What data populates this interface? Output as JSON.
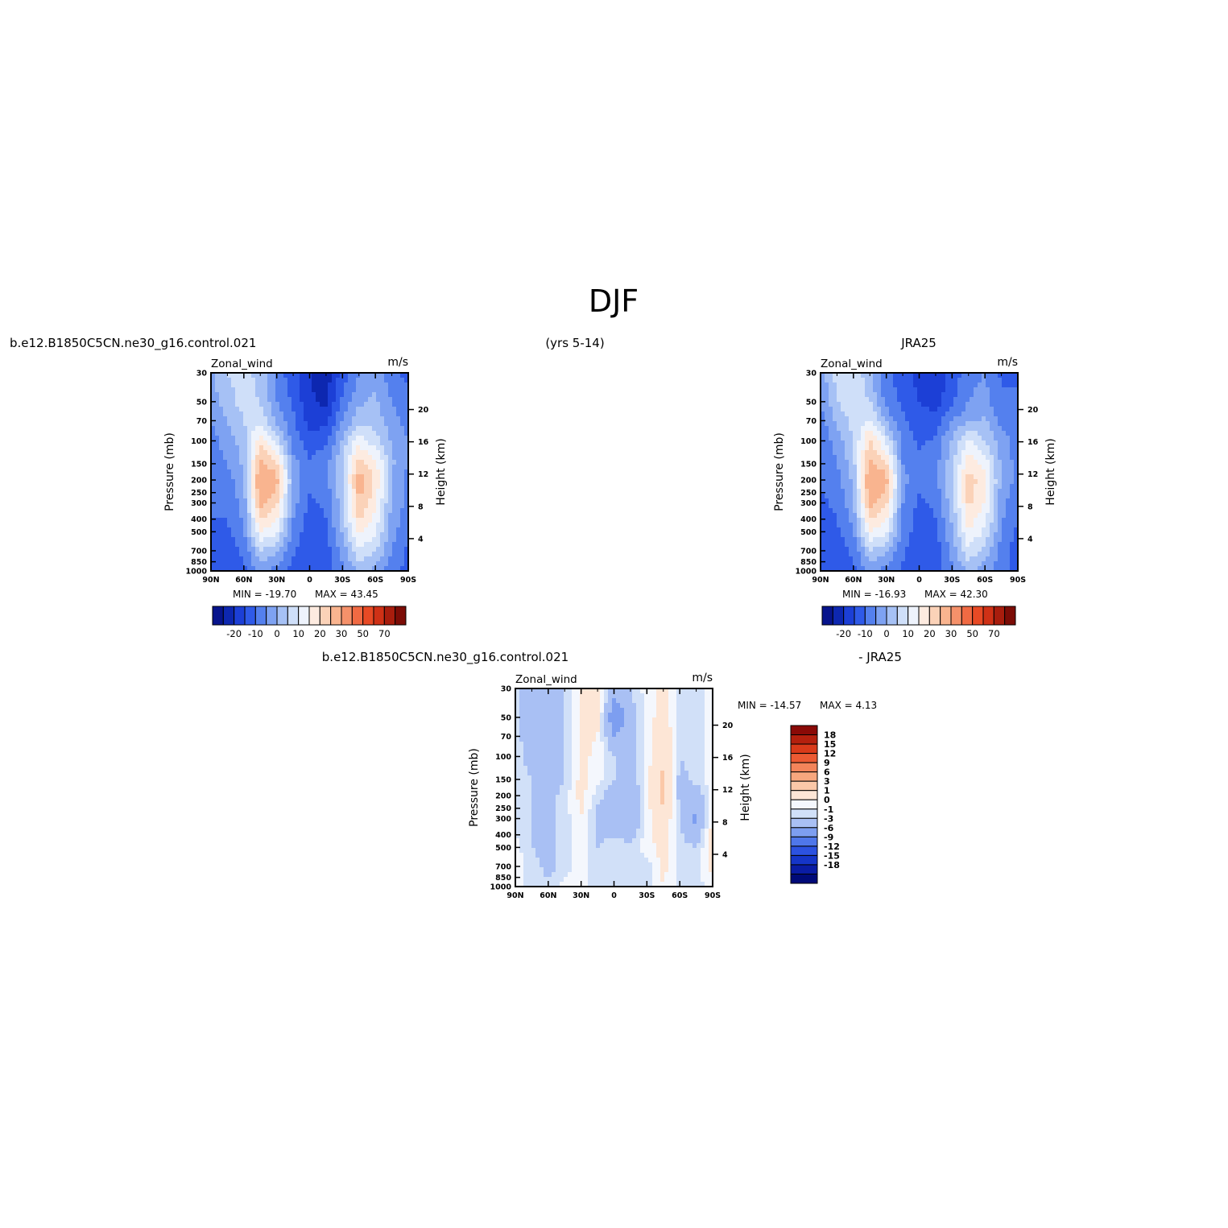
{
  "figure": {
    "season_title": "DJF",
    "case_name": "b.e12.B1850C5CN.ne30_g16.control.021",
    "years": "(yrs 5-14)",
    "obs_name": "JRA25",
    "diff_suffix": "- JRA25"
  },
  "colors": {
    "mean_palette": [
      "#07148c",
      "#0d27b0",
      "#1c3fd6",
      "#2f5ae8",
      "#5480ee",
      "#7ea2f2",
      "#a6c1f5",
      "#cfdff9",
      "#eef3fc",
      "#fdebe0",
      "#fbd2b8",
      "#f9b48f",
      "#f5916a",
      "#f06a43",
      "#e84a25",
      "#cf3116",
      "#a81d0d",
      "#7c0c06"
    ],
    "diff_palette": [
      "#000a78",
      "#0a1ca4",
      "#1535c8",
      "#2c52e0",
      "#4f77ea",
      "#7d9ef0",
      "#a9c0f4",
      "#d1e0f8",
      "#f4f7fd",
      "#fde6d6",
      "#fbc8a8",
      "#f7a77e",
      "#f3845a",
      "#ec5a33",
      "#d93a1a",
      "#b4200e",
      "#8a0a07"
    ]
  },
  "chart_data": [
    {
      "type": "heatmap",
      "panel": "model",
      "subtitle_left": "b.e12.B1850C5CN.ne30_g16.control.021",
      "subtitle_center": "(yrs 5-14)",
      "variable": "Zonal_wind",
      "units": "m/s",
      "ylabel": "Pressure (mb)",
      "right_label": "Height (km)",
      "x_ticks": [
        "90N",
        "60N",
        "30N",
        "0",
        "30S",
        "60S",
        "90S"
      ],
      "y_ticks": [
        30,
        50,
        70,
        100,
        150,
        200,
        250,
        300,
        400,
        500,
        700,
        850,
        1000
      ],
      "height_ticks": [
        20,
        16,
        12,
        8,
        4
      ],
      "min_text": "MIN = -19.70",
      "max_text": "MAX = 43.45",
      "min": -19.7,
      "max": 43.45,
      "levels": [
        -25,
        -20,
        -15,
        -10,
        -5,
        0,
        5,
        10,
        15,
        20,
        25,
        30,
        40,
        50,
        60,
        70,
        80
      ],
      "level_labels": [
        "-20",
        "-10",
        "0",
        "10",
        "20",
        "30",
        "50",
        "70"
      ],
      "x": [
        -90,
        -75,
        -60,
        -45,
        -30,
        -15,
        0,
        15,
        30,
        45,
        60,
        75,
        90
      ],
      "p": [
        30,
        50,
        70,
        100,
        150,
        200,
        300,
        500,
        700,
        1000
      ],
      "u": [
        [
          4,
          10,
          12,
          8,
          -2,
          -8,
          -15,
          -18,
          -8,
          0,
          4,
          -4,
          -6
        ],
        [
          2,
          8,
          12,
          10,
          0,
          -6,
          -14,
          -16,
          -4,
          4,
          6,
          0,
          -4
        ],
        [
          0,
          5,
          10,
          14,
          4,
          -4,
          -12,
          -12,
          0,
          8,
          8,
          2,
          -2
        ],
        [
          -2,
          2,
          8,
          24,
          12,
          -2,
          -8,
          -6,
          6,
          18,
          12,
          4,
          0
        ],
        [
          -2,
          0,
          6,
          32,
          26,
          2,
          -4,
          -2,
          10,
          28,
          22,
          6,
          0
        ],
        [
          -2,
          -2,
          4,
          38,
          32,
          4,
          -4,
          -2,
          10,
          34,
          24,
          4,
          -2
        ],
        [
          -4,
          -4,
          2,
          32,
          26,
          2,
          -6,
          -4,
          8,
          30,
          22,
          4,
          -2
        ],
        [
          -6,
          -6,
          0,
          20,
          16,
          -2,
          -8,
          -6,
          6,
          22,
          16,
          2,
          -4
        ],
        [
          -8,
          -8,
          -4,
          10,
          6,
          -4,
          -10,
          -8,
          2,
          14,
          10,
          0,
          -6
        ],
        [
          -6,
          -6,
          -6,
          2,
          -2,
          -8,
          -8,
          -6,
          -2,
          6,
          4,
          -4,
          -6
        ]
      ]
    },
    {
      "type": "heatmap",
      "panel": "observations",
      "subtitle_right": "JRA25",
      "variable": "Zonal_wind",
      "units": "m/s",
      "ylabel": "Pressure (mb)",
      "right_label": "Height (km)",
      "x_ticks": [
        "90N",
        "60N",
        "30N",
        "0",
        "30S",
        "60S",
        "90S"
      ],
      "y_ticks": [
        30,
        50,
        70,
        100,
        150,
        200,
        250,
        300,
        400,
        500,
        700,
        850,
        1000
      ],
      "height_ticks": [
        20,
        16,
        12,
        8,
        4
      ],
      "min_text": "MIN = -16.93",
      "max_text": "MAX = 42.30",
      "min": -16.93,
      "max": 42.3,
      "levels": [
        -25,
        -20,
        -15,
        -10,
        -5,
        0,
        5,
        10,
        15,
        20,
        25,
        30,
        40,
        50,
        60,
        70,
        80
      ],
      "level_labels": [
        "-20",
        "-10",
        "0",
        "10",
        "20",
        "30",
        "50",
        "70"
      ],
      "x": [
        -90,
        -75,
        -60,
        -45,
        -30,
        -15,
        0,
        15,
        30,
        45,
        60,
        75,
        90
      ],
      "p": [
        30,
        50,
        70,
        100,
        150,
        200,
        300,
        500,
        700,
        1000
      ],
      "u": [
        [
          2,
          12,
          14,
          6,
          -4,
          -8,
          -12,
          -14,
          -8,
          -2,
          0,
          -6,
          -6
        ],
        [
          0,
          10,
          14,
          10,
          -2,
          -6,
          -10,
          -12,
          -6,
          0,
          2,
          -4,
          -4
        ],
        [
          -2,
          6,
          12,
          16,
          4,
          -4,
          -8,
          -8,
          0,
          4,
          6,
          -2,
          -4
        ],
        [
          -4,
          2,
          10,
          26,
          14,
          -2,
          -6,
          -4,
          6,
          16,
          10,
          2,
          -2
        ],
        [
          -4,
          0,
          8,
          32,
          26,
          0,
          -4,
          -2,
          8,
          24,
          18,
          4,
          -2
        ],
        [
          -4,
          -2,
          6,
          38,
          32,
          2,
          -4,
          -2,
          10,
          28,
          22,
          4,
          -2
        ],
        [
          -6,
          -4,
          4,
          32,
          26,
          0,
          -6,
          -4,
          8,
          26,
          20,
          2,
          -4
        ],
        [
          -8,
          -6,
          0,
          20,
          16,
          -2,
          -8,
          -6,
          4,
          20,
          14,
          0,
          -6
        ],
        [
          -8,
          -8,
          -4,
          10,
          6,
          -4,
          -10,
          -8,
          2,
          14,
          8,
          -2,
          -8
        ],
        [
          -6,
          -6,
          -6,
          2,
          -2,
          -6,
          -8,
          -6,
          -2,
          6,
          2,
          -4,
          -6
        ]
      ]
    },
    {
      "type": "heatmap",
      "panel": "difference",
      "subtitle_left": "b.e12.B1850C5CN.ne30_g16.control.021",
      "subtitle_right": "- JRA25",
      "variable": "Zonal_wind",
      "units": "m/s",
      "ylabel": "Pressure (mb)",
      "right_label": "Height (km)",
      "x_ticks": [
        "90N",
        "60N",
        "30N",
        "0",
        "30S",
        "60S",
        "90S"
      ],
      "y_ticks": [
        30,
        50,
        70,
        100,
        150,
        200,
        250,
        300,
        400,
        500,
        700,
        850,
        1000
      ],
      "height_ticks": [
        20,
        16,
        12,
        8,
        4
      ],
      "min_text": "MIN = -14.57",
      "max_text": "MAX = 4.13",
      "min": -14.57,
      "max": 4.13,
      "levels": [
        -21,
        -18,
        -15,
        -12,
        -9,
        -6,
        -3,
        -1,
        0,
        1,
        3,
        6,
        9,
        12,
        15,
        18,
        21
      ],
      "level_labels": [
        "18",
        "15",
        "12",
        "9",
        "6",
        "3",
        "1",
        "0",
        "-1",
        "-3",
        "-6",
        "-9",
        "-12",
        "-15",
        "-18"
      ],
      "x": [
        -90,
        -75,
        -60,
        -45,
        -30,
        -15,
        0,
        15,
        30,
        45,
        60,
        75,
        90
      ],
      "p": [
        30,
        50,
        70,
        100,
        150,
        200,
        300,
        500,
        700,
        1000
      ],
      "u": [
        [
          -0.5,
          -2,
          -3,
          -1,
          1.5,
          2,
          -2,
          -1,
          0.5,
          1.5,
          -0.5,
          -0.5,
          0.5
        ],
        [
          -0.5,
          -2,
          -3,
          -1,
          1.5,
          1.5,
          -5,
          -2,
          0.5,
          1.5,
          -0.5,
          -0.5,
          0.5
        ],
        [
          -0.5,
          -2,
          -3,
          -1,
          1.5,
          1,
          -3,
          -2,
          0.5,
          2.5,
          -0.5,
          -0.5,
          0.5
        ],
        [
          -0.5,
          -1.5,
          -3,
          -1,
          1.5,
          0.5,
          -1,
          -1.5,
          0.5,
          2.5,
          -1,
          -0.5,
          0.5
        ],
        [
          -0.5,
          -1,
          -2,
          -1,
          1.5,
          0.5,
          -1,
          -2,
          0.5,
          3.5,
          -1.5,
          -0.5,
          0.5
        ],
        [
          -0.5,
          -1,
          -1.5,
          -0.5,
          1.5,
          -0.5,
          -2,
          -3,
          0.5,
          3.5,
          -1.5,
          -2,
          0.5
        ],
        [
          -0.5,
          -1,
          -1.5,
          -0.5,
          1,
          -1.5,
          -2,
          -3,
          0.5,
          2.5,
          -1,
          -3.5,
          1.5
        ],
        [
          0.5,
          -1,
          -1.5,
          -0.5,
          0.5,
          -1,
          -0.5,
          -0.5,
          0.5,
          1.5,
          -0.5,
          -1,
          1.5
        ],
        [
          0.5,
          -0.5,
          -1.5,
          -0.5,
          0.5,
          -0.5,
          -0.5,
          -0.5,
          -0.5,
          1.5,
          -0.5,
          -0.5,
          1.5
        ],
        [
          0.5,
          -0.5,
          -0.5,
          0.5,
          0.5,
          -0.5,
          -0.5,
          -0.5,
          -0.5,
          1,
          -0.5,
          -0.5,
          0.5
        ]
      ]
    }
  ]
}
